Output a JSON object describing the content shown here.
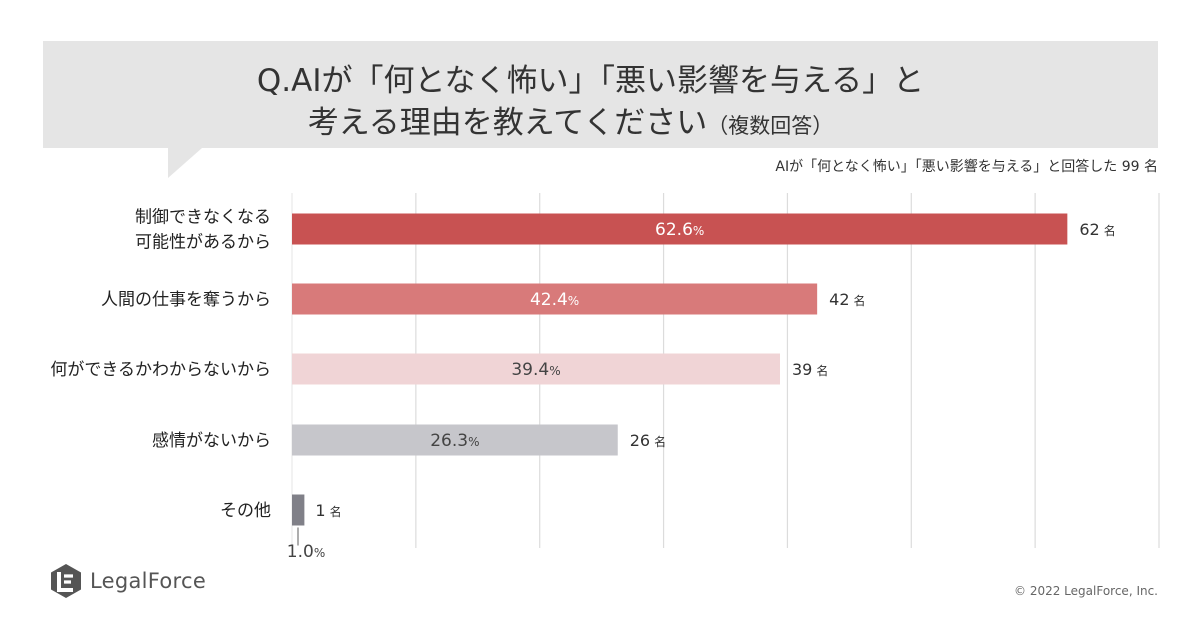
{
  "title": {
    "line1": "Q.AIが「何となく怖い」「悪い影響を与える」と",
    "line2": "考える理由を教えてください",
    "note": "（複数回答）"
  },
  "respondents": "AIが「何となく怖い」「悪い影響を与える」と回答した 99 名",
  "chart_data": {
    "type": "bar",
    "orientation": "horizontal",
    "categories": [
      [
        "制御できなくなる",
        "可能性があるから"
      ],
      [
        "人間の仕事を奪うから"
      ],
      [
        "何ができるかわからないから"
      ],
      [
        "感情がないから"
      ],
      [
        "その他"
      ]
    ],
    "values": [
      62.6,
      42.4,
      39.4,
      26.3,
      1.0
    ],
    "counts": [
      62,
      42,
      39,
      26,
      1
    ],
    "percent_unit": "%",
    "count_unit": "名",
    "colors": [
      "#c85252",
      "#d87a7a",
      "#f0d4d6",
      "#c6c6cb",
      "#808088"
    ],
    "label_colors": [
      "#ffffff",
      "#ffffff",
      "#444444",
      "#444444",
      "#444444"
    ],
    "xlim": [
      0,
      70
    ],
    "grid_step": 10
  },
  "brand": {
    "name": "LegalForce",
    "logo_color": "#555555"
  },
  "copyright": "© 2022 LegalForce, Inc."
}
